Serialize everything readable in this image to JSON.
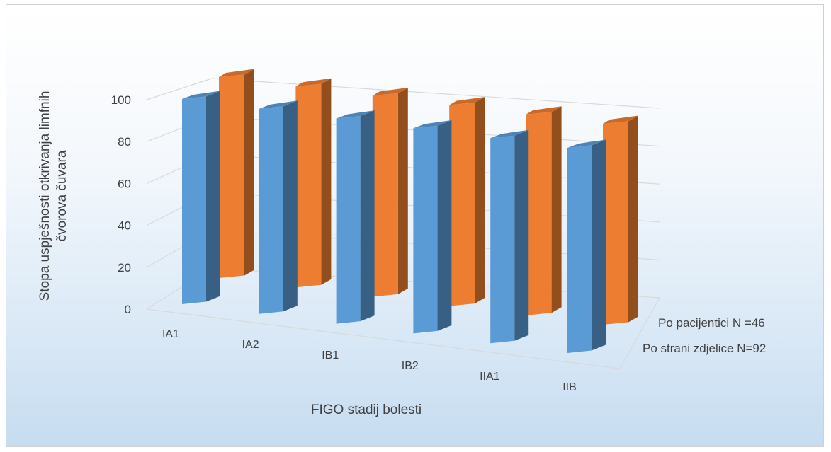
{
  "chart_data": {
    "type": "bar",
    "style": "3d-column",
    "categories": [
      "IA1",
      "IA2",
      "IB1",
      "IB2",
      "IIA1",
      "IIB"
    ],
    "series": [
      {
        "name": "Po pacijentici N =46",
        "values": [
          100,
          100,
          100,
          100,
          100,
          100
        ]
      },
      {
        "name": "Po strani zdjelice N=92",
        "values": [
          100,
          100,
          100,
          100,
          100,
          100
        ]
      }
    ],
    "xlabel": "FIGO stadij bolesti",
    "ylabel": "Stopa uspješnosti otkrivanja limfnih čvorova čuvara",
    "ylim": [
      0,
      100
    ],
    "yticks": [
      0,
      20,
      40,
      60,
      80,
      100
    ],
    "grid": true
  },
  "colors": {
    "series_front": "#5b9bd5",
    "series_back": "#ed7d31"
  }
}
